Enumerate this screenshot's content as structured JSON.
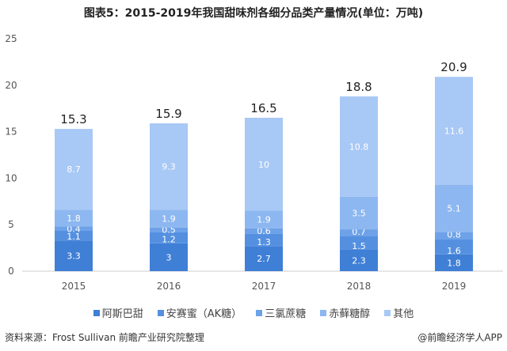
{
  "chart_data": {
    "type": "bar",
    "stacked": true,
    "title": "图表5：2015-2019年我国甜味剂各细分品类产量情况(单位：万吨)",
    "categories": [
      "2015",
      "2016",
      "2017",
      "2018",
      "2019"
    ],
    "series": [
      {
        "name": "阿斯巴甜",
        "values": [
          3.3,
          3,
          2.7,
          2.3,
          1.8
        ],
        "color": "#3f7fd6"
      },
      {
        "name": "安赛蜜（AK糖）",
        "values": [
          1.1,
          1.2,
          1.3,
          1.5,
          1.6
        ],
        "color": "#5590e0"
      },
      {
        "name": "三氯蔗糖",
        "values": [
          0.4,
          0.5,
          0.6,
          0.7,
          0.8
        ],
        "color": "#6ea2e8"
      },
      {
        "name": "赤藓糖醇",
        "values": [
          1.8,
          1.9,
          1.9,
          3.5,
          5.1
        ],
        "color": "#8db7f0"
      },
      {
        "name": "其他",
        "values": [
          8.7,
          9.3,
          10,
          10.8,
          11.6
        ],
        "color": "#a8c8f5"
      }
    ],
    "totals": [
      15.3,
      15.9,
      16.5,
      18.8,
      20.9
    ],
    "ylim": [
      0,
      25
    ],
    "yticks": [
      0,
      5,
      10,
      15,
      20,
      25
    ],
    "grid": false,
    "legend": "bottom"
  },
  "source": "资料来源：Frost Sullivan 前瞻产业研究院整理",
  "credit": "@前瞻经济学人APP"
}
